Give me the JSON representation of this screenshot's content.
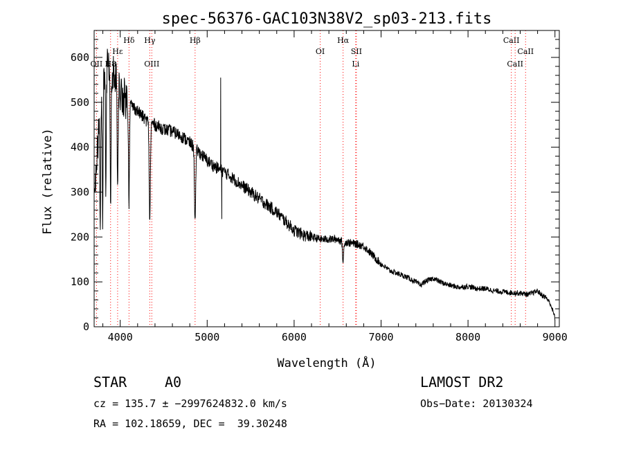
{
  "chart_data": {
    "type": "line",
    "title": "spec-56376-GAC103N38V2_sp03-213.fits",
    "xlabel": "Wavelength (Å)",
    "ylabel": "Flux (relative)",
    "xlim": [
      3700,
      9050
    ],
    "ylim": [
      0,
      660
    ],
    "x_ticks": [
      4000,
      5000,
      6000,
      7000,
      8000,
      9000
    ],
    "y_ticks": [
      0,
      100,
      200,
      300,
      400,
      500,
      600
    ],
    "grid": false,
    "line_color": "#000000",
    "marker_color": "#ff0000",
    "continuum": {
      "x": [
        3700,
        3760,
        3800,
        3850,
        3900,
        3950,
        4000,
        4100,
        4200,
        4300,
        4400,
        4500,
        4600,
        4700,
        4800,
        4900,
        5000,
        5100,
        5200,
        5300,
        5400,
        5500,
        5600,
        5700,
        5800,
        5900,
        6000,
        6100,
        6200,
        6300,
        6400,
        6500,
        6600,
        6700,
        6800,
        6900,
        7000,
        7100,
        7200,
        7300,
        7400,
        7450,
        7500,
        7600,
        7700,
        7800,
        7900,
        8000,
        8100,
        8200,
        8300,
        8400,
        8500,
        8600,
        8700,
        8800,
        8850,
        8900,
        8950,
        9000
      ],
      "y": [
        300,
        460,
        540,
        580,
        570,
        560,
        520,
        500,
        480,
        460,
        450,
        440,
        435,
        425,
        410,
        390,
        370,
        355,
        345,
        330,
        315,
        300,
        285,
        270,
        255,
        235,
        215,
        205,
        200,
        195,
        195,
        195,
        188,
        185,
        180,
        160,
        140,
        125,
        118,
        110,
        100,
        92,
        100,
        108,
        98,
        92,
        88,
        90,
        85,
        85,
        80,
        78,
        76,
        75,
        72,
        80,
        70,
        65,
        50,
        20
      ]
    },
    "absorption_lines": [
      {
        "x": 3770,
        "y": 200
      },
      {
        "x": 3798,
        "y": 250
      },
      {
        "x": 3835,
        "y": 320
      },
      {
        "x": 3889,
        "y": 270
      },
      {
        "x": 3970,
        "y": 275
      },
      {
        "x": 4101,
        "y": 275
      },
      {
        "x": 4340,
        "y": 240
      },
      {
        "x": 4861,
        "y": 235
      },
      {
        "x": 6563,
        "y": 145
      }
    ],
    "emission_spikes": [
      {
        "x": 5155,
        "y": 555
      },
      {
        "x": 5168,
        "y": 240
      }
    ],
    "line_markers": [
      {
        "label": "Hα",
        "x": 6563,
        "row": 0
      },
      {
        "label": "Hβ",
        "x": 4861,
        "row": 0
      },
      {
        "label": "Hγ",
        "x": 4340,
        "row": 0
      },
      {
        "label": "Hδ",
        "x": 4101,
        "row": 0
      },
      {
        "label": "Hε",
        "x": 3970,
        "row": 1
      },
      {
        "label": "H8",
        "x": 3889,
        "row": 2
      },
      {
        "label": "OI",
        "x": 6300,
        "row": 1
      },
      {
        "label": "OII",
        "x": 3727,
        "row": 2
      },
      {
        "label": "OIII",
        "x": 4363,
        "row": 2
      },
      {
        "label": "SII",
        "x": 6716,
        "row": 1
      },
      {
        "label": "Li",
        "x": 6708,
        "row": 2
      },
      {
        "label": "CaII",
        "x": 8498,
        "row": 0
      },
      {
        "label": "CaII",
        "x": 8542,
        "row": 2
      },
      {
        "label": "CaII",
        "x": 8662,
        "row": 1
      }
    ]
  },
  "info": {
    "object_type": "STAR",
    "subclass": "A0",
    "survey": "LAMOST DR2",
    "cz_line": "cz = 135.7 ± −2997624832.0 km/s",
    "obs_date": "Obs−Date: 20130324",
    "coords": "RA = 102.18659, DEC =  39.30248"
  }
}
